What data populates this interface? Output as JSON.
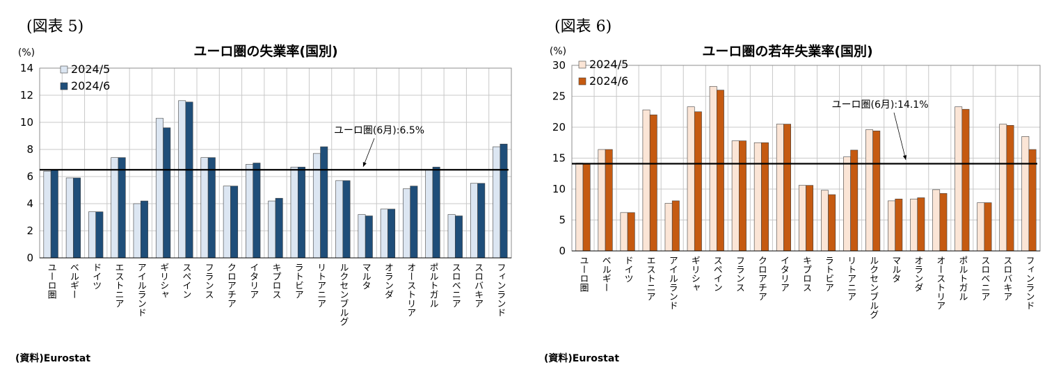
{
  "figures": [
    {
      "fig_label": "(図表 5)",
      "source": "(資料)Eurostat"
    },
    {
      "fig_label": "(図表 6)",
      "source": "(資料)Eurostat"
    }
  ],
  "chart_data": [
    {
      "type": "bar",
      "title": "ユーロ圏の失業率(国別)",
      "ylabel": "(%)",
      "ylim": [
        0,
        14
      ],
      "yticks": [
        0,
        2,
        4,
        6,
        8,
        10,
        12,
        14
      ],
      "grid": true,
      "legend_position": "top-left",
      "categories": [
        "ユーロ圏",
        "ベルギー",
        "ドイツ",
        "エストニア",
        "アイルランド",
        "ギリシャ",
        "スペイン",
        "フランス",
        "クロアチア",
        "イタリア",
        "キプロス",
        "ラトビア",
        "リトアニア",
        "ルクセンブルグ",
        "マルタ",
        "オランダ",
        "オーストリア",
        "ポルトガル",
        "スロベニア",
        "スロバキア",
        "フィンランド"
      ],
      "series": [
        {
          "name": "2024/5",
          "color": "#dce6f2",
          "values": [
            6.4,
            5.9,
            3.4,
            7.4,
            4.0,
            10.3,
            11.6,
            7.4,
            5.3,
            6.9,
            4.2,
            6.7,
            7.7,
            5.7,
            3.2,
            3.6,
            5.1,
            6.5,
            3.2,
            5.5,
            8.2
          ]
        },
        {
          "name": "2024/6",
          "color": "#1f4e79",
          "values": [
            6.5,
            5.9,
            3.4,
            7.4,
            4.2,
            9.6,
            11.5,
            7.4,
            5.3,
            7.0,
            4.4,
            6.7,
            8.2,
            5.7,
            3.1,
            3.6,
            5.3,
            6.7,
            3.1,
            5.5,
            8.4
          ]
        }
      ],
      "reference_line": {
        "value": 6.5,
        "label": "ユーロ圏(6月):6.5%"
      }
    },
    {
      "type": "bar",
      "title": "ユーロ圏の若年失業率(国別)",
      "ylabel": "(%)",
      "ylim": [
        0,
        30
      ],
      "yticks": [
        0,
        5,
        10,
        15,
        20,
        25,
        30
      ],
      "grid": true,
      "legend_position": "top-left",
      "categories": [
        "ユーロ圏",
        "ベルギー",
        "ドイツ",
        "エストニア",
        "アイルランド",
        "ギリシャ",
        "スペイン",
        "フランス",
        "クロアチア",
        "イタリア",
        "キプロス",
        "ラトビア",
        "リトアニア",
        "ルクセンブルグ",
        "マルタ",
        "オランダ",
        "オーストリア",
        "ポルトガル",
        "スロベニア",
        "スロバキア",
        "フィンランド"
      ],
      "series": [
        {
          "name": "2024/5",
          "color": "#fbe5d6",
          "values": [
            14.2,
            16.4,
            6.2,
            22.8,
            7.7,
            23.3,
            26.6,
            17.8,
            17.5,
            20.5,
            10.6,
            9.8,
            15.2,
            19.6,
            8.1,
            8.4,
            9.9,
            23.3,
            7.8,
            20.5,
            18.5
          ]
        },
        {
          "name": "2024/6",
          "color": "#c55a11",
          "values": [
            14.1,
            16.4,
            6.2,
            22.0,
            8.1,
            22.5,
            26.0,
            17.8,
            17.5,
            20.5,
            10.6,
            9.1,
            16.3,
            19.4,
            8.4,
            8.6,
            9.3,
            22.9,
            7.8,
            20.3,
            16.4
          ]
        }
      ],
      "reference_line": {
        "value": 14.1,
        "label": "ユーロ圏(6月):14.1%"
      }
    }
  ]
}
